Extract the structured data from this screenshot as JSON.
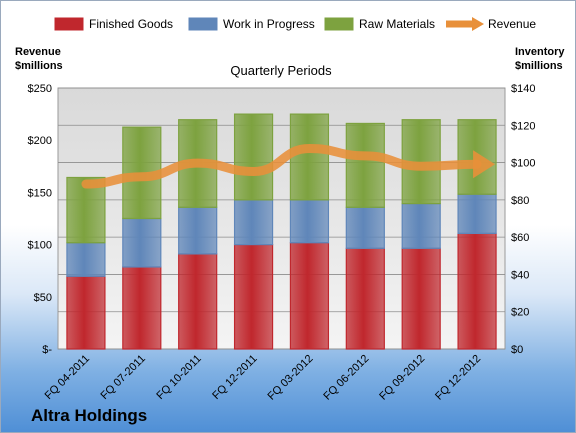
{
  "company": "Altra Holdings",
  "chart_data": {
    "type": "bar",
    "subtitle": "Quarterly Periods",
    "ylabel_left": [
      "Revenue",
      "$millions"
    ],
    "ylabel_right": [
      "Inventory",
      "$millions"
    ],
    "categories": [
      "FQ 04-2011",
      "FQ 07-2011",
      "FQ 10-2011",
      "FQ 12-2011",
      "FQ 03-2012",
      "FQ 06-2012",
      "FQ 09-2012",
      "FQ 12-2012"
    ],
    "stacked": true,
    "series": [
      {
        "name": "Finished Goods",
        "axis": "right",
        "color": "#c0272d",
        "values": [
          39,
          44,
          51,
          56,
          57,
          54,
          54,
          62
        ]
      },
      {
        "name": "Work in Progress",
        "axis": "right",
        "color": "#5f86b9",
        "values": [
          18,
          26,
          25,
          24,
          23,
          22,
          24,
          21
        ]
      },
      {
        "name": "Raw Materials",
        "axis": "right",
        "color": "#7da23f",
        "values": [
          35,
          49,
          47,
          46,
          46,
          45,
          45,
          40
        ]
      },
      {
        "name": "Revenue",
        "axis": "left",
        "type": "line",
        "color": "#e8903a",
        "values": [
          158,
          165,
          178,
          170,
          192,
          185,
          175,
          177
        ]
      }
    ],
    "ylim_left": [
      0,
      250
    ],
    "ylim_right": [
      0,
      140
    ],
    "yticks_left": [
      "$-",
      "$50",
      "$100",
      "$150",
      "$200",
      "$250"
    ],
    "yticks_right": [
      "$0",
      "$20",
      "$40",
      "$60",
      "$80",
      "$100",
      "$120",
      "$140"
    ],
    "legend": "top",
    "grid": true
  }
}
